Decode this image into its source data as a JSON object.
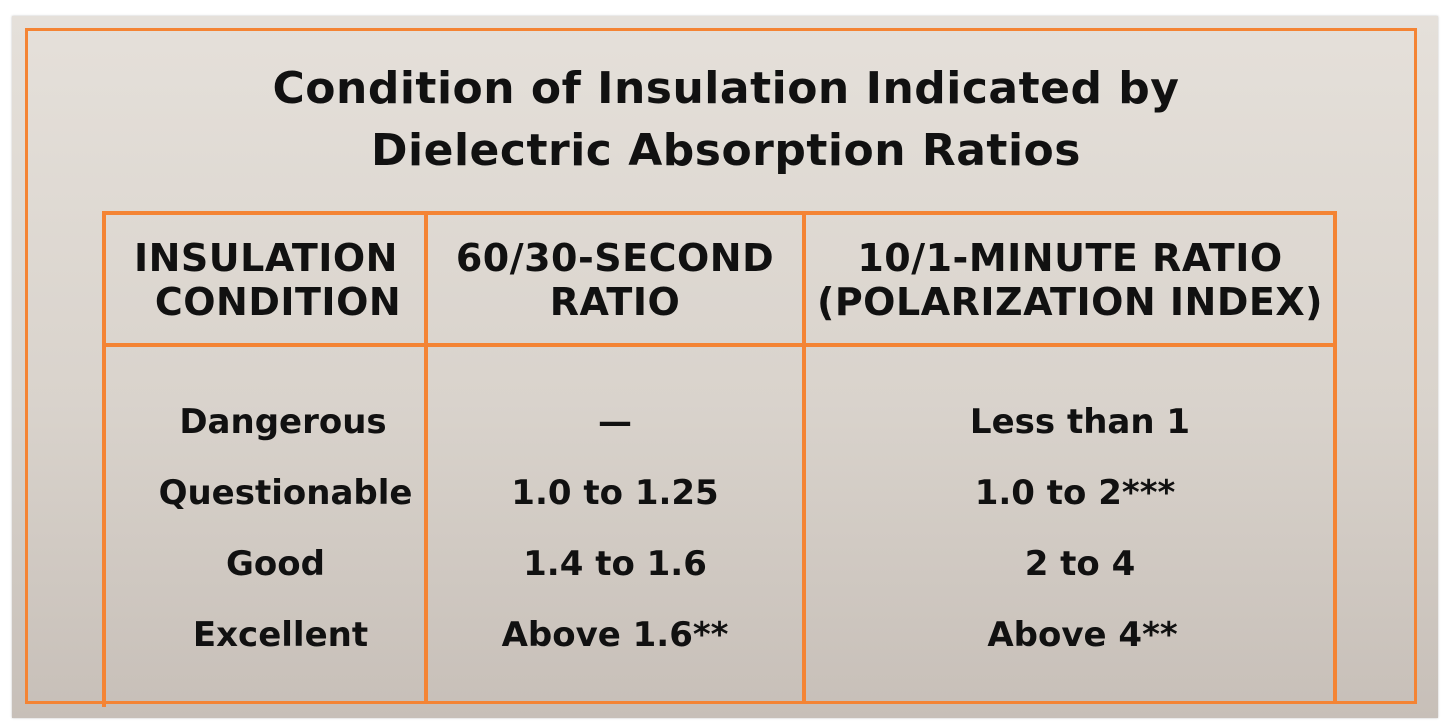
{
  "title": {
    "line1": "Condition of Insulation Indicated by",
    "line2": "Dielectric Absorption Ratios"
  },
  "table": {
    "headers": [
      {
        "line1": "INSULATION",
        "line2": "CONDITION"
      },
      {
        "line1": "60/30-SECOND",
        "line2": "RATIO"
      },
      {
        "line1": "10/1-MINUTE RATIO",
        "line2": "(POLARIZATION INDEX)"
      }
    ],
    "rows": [
      {
        "condition": "Dangerous",
        "ratio_60_30": "—",
        "ratio_10_1": "Less than 1"
      },
      {
        "condition": "Questionable",
        "ratio_60_30": "1.0 to 1.25",
        "ratio_10_1": "1.0 to 2***"
      },
      {
        "condition": "Good",
        "ratio_60_30": "1.4 to 1.6",
        "ratio_10_1": "2 to 4"
      },
      {
        "condition": "Excellent",
        "ratio_60_30": "Above 1.6**",
        "ratio_10_1": "Above 4**"
      }
    ]
  },
  "colors": {
    "accent": "#f48434",
    "text": "#111111",
    "background": "#ddd7d0"
  }
}
